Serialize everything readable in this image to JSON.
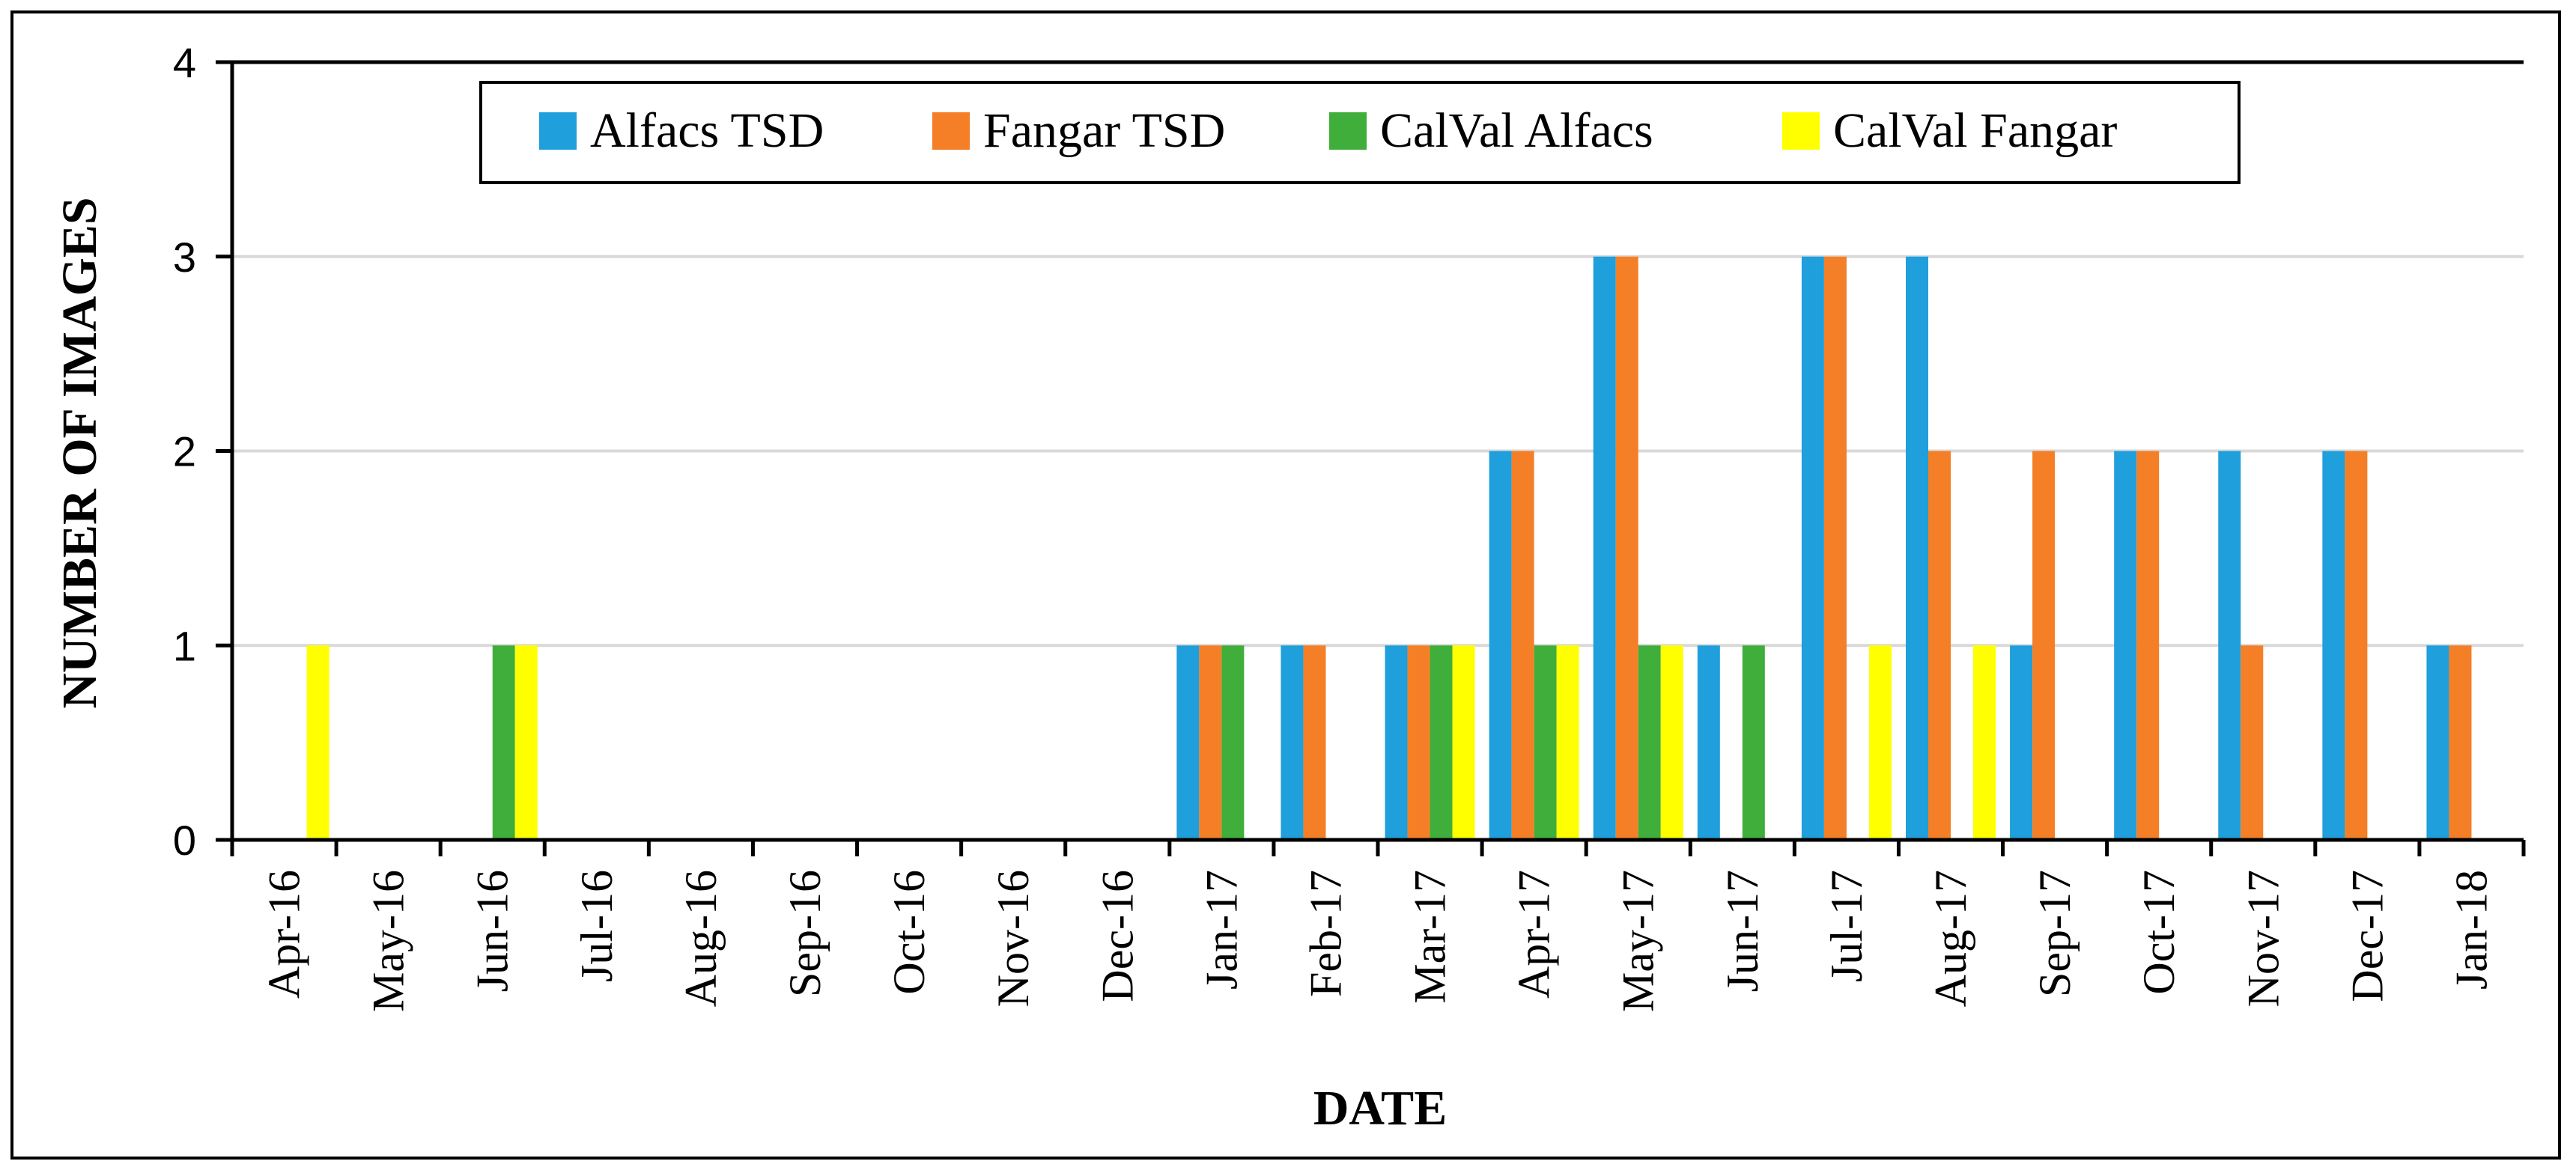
{
  "chart_data": {
    "type": "bar",
    "title": "",
    "xlabel": "DATE",
    "ylabel": "NUMBER OF IMAGES",
    "ylim": [
      0,
      4
    ],
    "yticks": [
      "0",
      "1",
      "2",
      "3",
      "4"
    ],
    "grid": true,
    "legend_position": "top",
    "categories": [
      "Apr-16",
      "May-16",
      "Jun-16",
      "Jul-16",
      "Aug-16",
      "Sep-16",
      "Oct-16",
      "Nov-16",
      "Dec-16",
      "Jan-17",
      "Feb-17",
      "Mar-17",
      "Apr-17",
      "May-17",
      "Jun-17",
      "Jul-17",
      "Aug-17",
      "Sep-17",
      "Oct-17",
      "Nov-17",
      "Dec-17",
      "Jan-18"
    ],
    "series": [
      {
        "name": "Alfacs TSD",
        "color": "#1F9FDB",
        "values": [
          0,
          0,
          0,
          0,
          0,
          0,
          0,
          0,
          0,
          1,
          1,
          1,
          2,
          3,
          1,
          3,
          3,
          1,
          2,
          2,
          2,
          1
        ]
      },
      {
        "name": "Fangar TSD",
        "color": "#F57F26",
        "values": [
          0,
          0,
          0,
          0,
          0,
          0,
          0,
          0,
          0,
          1,
          1,
          1,
          2,
          3,
          0,
          3,
          2,
          2,
          2,
          1,
          2,
          1
        ]
      },
      {
        "name": "CalVal Alfacs",
        "color": "#3FAE3A",
        "values": [
          0,
          0,
          1,
          0,
          0,
          0,
          0,
          0,
          0,
          1,
          0,
          1,
          1,
          1,
          1,
          0,
          0,
          0,
          0,
          0,
          0,
          0
        ]
      },
      {
        "name": "CalVal Fangar",
        "color": "#FFFF00",
        "values": [
          1,
          0,
          1,
          0,
          0,
          0,
          0,
          0,
          0,
          0,
          0,
          1,
          1,
          1,
          0,
          1,
          1,
          0,
          0,
          0,
          0,
          0
        ]
      }
    ]
  }
}
